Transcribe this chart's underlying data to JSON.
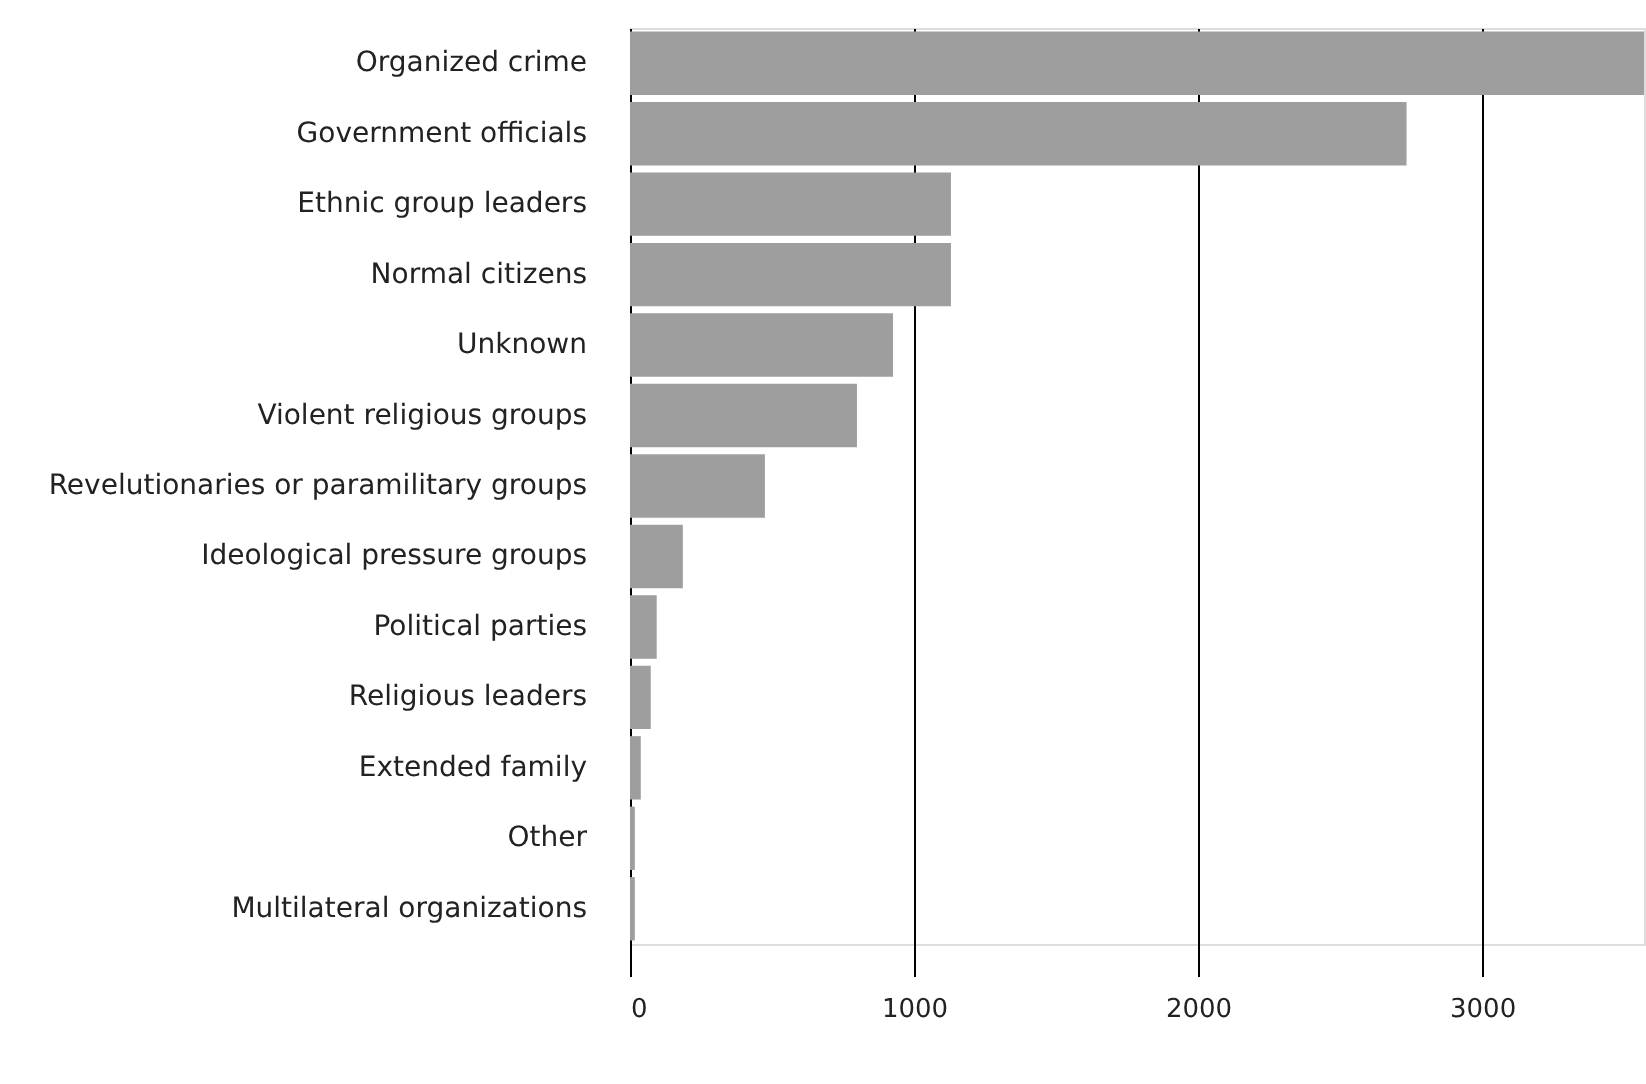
{
  "chart_data": {
    "type": "bar",
    "orientation": "horizontal",
    "categories": [
      "Organized  crime",
      "Government officials",
      "Ethnic group leaders",
      "Normal citizens",
      "Unknown",
      "Violent religious groups",
      "Revelutionaries or paramilitary groups",
      "Ideological pressure groups",
      "Political parties",
      "Religious leaders",
      "Extended family",
      "Other",
      "Multilateral organizations"
    ],
    "values": [
      3570,
      2734,
      1130,
      1130,
      926,
      799,
      475,
      186,
      94,
      73,
      38,
      17,
      17
    ],
    "color": "#9e9e9e",
    "xlim": [
      0,
      3570
    ],
    "xticks": [
      0,
      1000,
      2000,
      3000
    ],
    "grid": "x"
  }
}
